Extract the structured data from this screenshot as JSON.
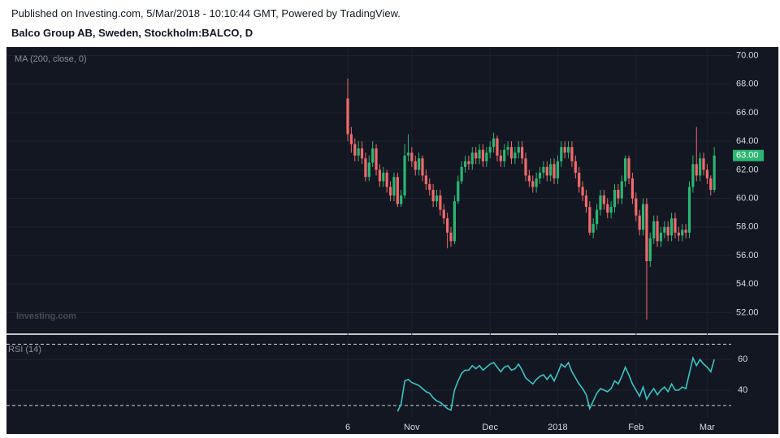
{
  "header": {
    "published": "Published on Investing.com, 5/Mar/2018 - 10:10:44 GMT, Powered by TradingView.",
    "symbol": "Balco Group AB, Sweden, Stockholm:BALCO, D"
  },
  "chart_data": [
    {
      "type": "candlestick",
      "study_label": "MA (200, close, 0)",
      "watermark": "Investing.com",
      "up_color": "#2bb673",
      "down_color": "#f06b6b",
      "grid": true,
      "categories": [
        "6",
        null,
        null,
        null,
        null,
        null,
        null,
        null,
        null,
        null,
        null,
        null,
        null,
        null,
        null,
        null,
        null,
        null,
        "Nov",
        null,
        null,
        null,
        null,
        null,
        null,
        null,
        null,
        null,
        null,
        null,
        null,
        null,
        null,
        null,
        null,
        null,
        null,
        null,
        null,
        null,
        "Dec",
        null,
        null,
        null,
        null,
        null,
        null,
        null,
        null,
        null,
        null,
        null,
        null,
        null,
        null,
        null,
        null,
        null,
        null,
        "2018",
        null,
        null,
        null,
        null,
        null,
        null,
        null,
        null,
        null,
        null,
        null,
        null,
        null,
        null,
        null,
        null,
        null,
        null,
        null,
        null,
        null,
        "Feb",
        null,
        null,
        null,
        null,
        null,
        null,
        null,
        null,
        null,
        null,
        null,
        null,
        null,
        null,
        null,
        null,
        null,
        null,
        null,
        "Mar",
        null,
        null
      ],
      "open": [
        67,
        64.5,
        63.8,
        63,
        63.5,
        62.8,
        61.5,
        62.5,
        63.5,
        62,
        61.2,
        61.8,
        60.8,
        60.2,
        61.5,
        59.6,
        60.2,
        63,
        63.2,
        62.6,
        62,
        62.8,
        61.6,
        61,
        60.6,
        59.8,
        60.2,
        59.2,
        58.6,
        57.6,
        57,
        59.8,
        61.2,
        62.2,
        62.6,
        62.4,
        63.2,
        62.8,
        63.4,
        62.6,
        63.2,
        63.6,
        64.2,
        63,
        62.6,
        63.4,
        63.6,
        62.8,
        63.2,
        63.6,
        62.8,
        61.6,
        61.2,
        60.8,
        61.4,
        61.8,
        62.2,
        61.6,
        62.4,
        61.4,
        62.6,
        63.6,
        63.2,
        63.6,
        62.6,
        61.8,
        60.8,
        60.2,
        59.4,
        57.6,
        58.2,
        59.2,
        60.2,
        59.6,
        59,
        59.4,
        60.6,
        60,
        61.2,
        62.8,
        61.4,
        60,
        58.8,
        57.8,
        59.6,
        55.6,
        57.2,
        58.4,
        57,
        57.6,
        58,
        57.4,
        58.6,
        57.6,
        57.4,
        57.8,
        57.6,
        60.8,
        62.4,
        61.6,
        62.8,
        62,
        61.4,
        60.6
      ],
      "high": [
        68.4,
        65,
        64.2,
        64,
        64,
        63.2,
        63,
        64,
        63.8,
        62.4,
        62.2,
        62,
        61.2,
        61.8,
        61.8,
        60.6,
        63.8,
        64.5,
        63.6,
        63,
        63.2,
        63,
        62,
        61.4,
        61,
        60.6,
        60.6,
        59.6,
        59,
        58,
        60.2,
        61.6,
        62.6,
        63,
        63,
        63.6,
        63.6,
        63.8,
        63.8,
        63.6,
        64,
        64.6,
        64.4,
        63.4,
        63.8,
        64,
        64,
        63.6,
        64,
        64,
        63.2,
        62,
        61.6,
        61.8,
        62.2,
        62.6,
        62.6,
        62.8,
        62.8,
        63,
        64,
        64,
        64,
        64,
        63,
        62.2,
        61.2,
        60.6,
        59.8,
        58.6,
        59.6,
        60.6,
        60.6,
        60,
        59.8,
        61,
        61,
        61.6,
        63,
        63,
        61.8,
        60.4,
        59.2,
        60,
        60,
        57.6,
        58.8,
        58.8,
        58,
        58.4,
        58.4,
        59,
        59,
        58,
        58.2,
        58.2,
        61.2,
        63,
        65,
        63.2,
        63.2,
        62.4,
        61.6,
        63.6
      ],
      "low": [
        64,
        63.2,
        62.6,
        62.6,
        62.4,
        61.2,
        61.2,
        62.2,
        61.6,
        60.8,
        60.8,
        60.4,
        59.8,
        59.8,
        59.4,
        59.4,
        60,
        62.6,
        62.2,
        61.6,
        61.6,
        61.2,
        60.6,
        60.2,
        59.4,
        59.4,
        58.8,
        58.2,
        56.5,
        56.6,
        56.8,
        59.6,
        61,
        61.8,
        62,
        62,
        62.4,
        62.4,
        62.2,
        62.2,
        62.8,
        63.2,
        62.6,
        62.2,
        62.2,
        63,
        62.4,
        62.4,
        62.8,
        62.4,
        61.2,
        60.8,
        60.4,
        60.4,
        61,
        61.4,
        61.2,
        61.2,
        61,
        61,
        62.2,
        62.8,
        62.8,
        62.2,
        61.4,
        60.4,
        59.8,
        59,
        57.4,
        57.2,
        57.8,
        58.8,
        59.2,
        58.6,
        58.6,
        59,
        59.6,
        59.6,
        60.8,
        61,
        59.6,
        58.4,
        57.4,
        57.4,
        51.5,
        55.2,
        56.8,
        56.6,
        56.6,
        57.2,
        57,
        57,
        57.2,
        57,
        57,
        57.2,
        57.2,
        60.4,
        61.2,
        61.2,
        61.6,
        61,
        60.2,
        60.4
      ],
      "close": [
        64.5,
        63.8,
        63,
        63.5,
        62.8,
        61.5,
        62.5,
        63.5,
        62,
        61.2,
        61.8,
        60.8,
        60.2,
        61.5,
        59.6,
        60.2,
        63,
        63.2,
        62.6,
        62,
        62.8,
        61.6,
        61,
        60.6,
        59.8,
        60.2,
        59.2,
        58.6,
        57.6,
        57,
        59.8,
        61.2,
        62.2,
        62.6,
        62.4,
        63.2,
        62.8,
        63.4,
        62.6,
        63.2,
        63.6,
        64.2,
        63,
        62.6,
        63.4,
        63.6,
        62.8,
        63.2,
        63.6,
        62.8,
        61.6,
        61.2,
        60.8,
        61.4,
        61.8,
        62.2,
        61.6,
        62.4,
        61.4,
        62.6,
        63.6,
        63.2,
        63.6,
        62.6,
        61.8,
        60.8,
        60.2,
        59.4,
        57.6,
        58.2,
        59.2,
        60.2,
        59.6,
        59,
        59.4,
        60.6,
        60,
        61.2,
        62.8,
        61.4,
        60,
        58.8,
        57.8,
        59.6,
        55.6,
        57.2,
        58.4,
        57,
        57.6,
        58,
        57.4,
        58.6,
        57.6,
        57.4,
        57.8,
        57.6,
        60.8,
        62.4,
        61.6,
        62.8,
        62,
        61.4,
        60.6,
        63
      ],
      "current_price": {
        "value": 63,
        "label": "63.00"
      },
      "ylim": [
        50.6,
        70.6
      ],
      "yticks": [
        {
          "value": 52,
          "label": "52.00"
        },
        {
          "value": 54,
          "label": "54.00"
        },
        {
          "value": 56,
          "label": "56.00"
        },
        {
          "value": 58,
          "label": "58.00"
        },
        {
          "value": 60,
          "label": "60.00"
        },
        {
          "value": 62,
          "label": "62.00"
        },
        {
          "value": 64,
          "label": "64.00"
        },
        {
          "value": 66,
          "label": "66.00"
        },
        {
          "value": 68,
          "label": "68.00"
        },
        {
          "value": 70,
          "label": "70.00"
        }
      ]
    },
    {
      "type": "line",
      "title": "RSI (14)",
      "color": "#3cc3c3",
      "values": [
        null,
        null,
        null,
        null,
        null,
        null,
        null,
        null,
        null,
        null,
        null,
        null,
        null,
        null,
        26,
        31,
        46,
        47,
        45,
        44,
        43,
        41,
        39,
        38,
        35,
        33,
        32,
        30,
        28,
        27,
        40,
        46,
        51,
        53,
        53,
        56,
        54,
        56,
        53,
        55,
        57,
        58,
        55,
        52,
        55,
        56,
        53,
        54,
        57,
        53,
        48,
        46,
        44,
        47,
        49,
        50,
        47,
        50,
        46,
        51,
        57,
        55,
        58,
        52,
        48,
        44,
        41,
        37,
        28,
        33,
        38,
        41,
        40,
        39,
        41,
        46,
        44,
        49,
        55,
        50,
        44,
        40,
        36,
        42,
        34,
        38,
        41,
        37,
        40,
        42,
        39,
        44,
        40,
        40,
        42,
        41,
        51,
        61,
        56,
        60,
        57,
        55,
        52,
        60
      ],
      "levels": [
        30,
        70
      ],
      "ylim": [
        22,
        76
      ],
      "yticks": [
        40,
        60
      ]
    }
  ]
}
